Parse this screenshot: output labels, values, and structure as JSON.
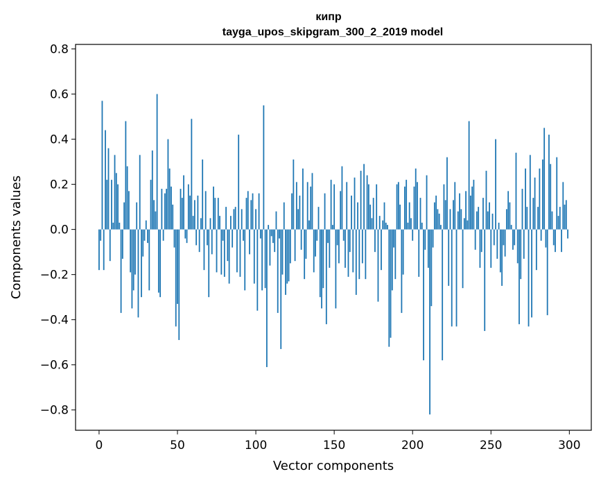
{
  "chart_data": {
    "type": "bar",
    "title": "кипр",
    "subtitle": "tayga_upos_skipgram_300_2_2019 model",
    "xlabel": "Vector components",
    "ylabel": "Components values",
    "xlim": [
      -15,
      314
    ],
    "ylim": [
      -0.89,
      0.82
    ],
    "xticks": [
      0,
      50,
      100,
      150,
      200,
      250,
      300
    ],
    "xtick_labels": [
      "0",
      "50",
      "100",
      "150",
      "200",
      "250",
      "300"
    ],
    "yticks": [
      -0.8,
      -0.6,
      -0.4,
      -0.2,
      0.0,
      0.2,
      0.4,
      0.6,
      0.8
    ],
    "ytick_labels": [
      "−0.8",
      "−0.6",
      "−0.4",
      "−0.2",
      "0.0",
      "0.2",
      "0.4",
      "0.6",
      "0.8"
    ],
    "grid": false,
    "x_start": 0,
    "values": [
      -0.18,
      -0.05,
      0.57,
      -0.18,
      0.44,
      0.22,
      0.36,
      -0.14,
      0.22,
      0.03,
      0.33,
      0.25,
      0.2,
      0.03,
      -0.37,
      -0.13,
      0.12,
      0.48,
      0.28,
      0.17,
      -0.19,
      -0.35,
      -0.27,
      -0.2,
      0.12,
      -0.39,
      0.33,
      -0.3,
      -0.12,
      -0.05,
      0.04,
      -0.06,
      -0.27,
      0.22,
      0.35,
      0.13,
      0.08,
      0.6,
      -0.28,
      -0.3,
      0.18,
      -0.05,
      0.16,
      0.18,
      0.4,
      0.27,
      0.19,
      0.11,
      -0.08,
      -0.43,
      -0.33,
      -0.49,
      0.18,
      0.14,
      0.24,
      -0.04,
      -0.06,
      0.2,
      0.15,
      0.49,
      0.06,
      0.13,
      -0.07,
      0.15,
      -0.1,
      0.05,
      0.31,
      -0.18,
      0.17,
      -0.07,
      -0.3,
      0.05,
      -0.11,
      0.19,
      0.14,
      -0.19,
      0.14,
      0.06,
      -0.2,
      -0.05,
      -0.21,
      0.1,
      -0.14,
      -0.24,
      0.06,
      -0.08,
      0.09,
      0.1,
      -0.19,
      0.42,
      -0.21,
      0.09,
      -0.05,
      -0.27,
      0.14,
      0.17,
      -0.11,
      0.13,
      0.16,
      -0.24,
      0.09,
      -0.36,
      0.16,
      -0.04,
      -0.27,
      0.55,
      -0.26,
      -0.61,
      0.02,
      -0.16,
      -0.03,
      -0.06,
      -0.1,
      0.08,
      -0.37,
      -0.04,
      -0.53,
      -0.2,
      0.12,
      -0.29,
      -0.24,
      -0.23,
      -0.15,
      0.16,
      0.31,
      -0.14,
      0.21,
      0.09,
      0.15,
      -0.09,
      0.27,
      -0.22,
      -0.13,
      0.21,
      0.04,
      0.19,
      0.25,
      -0.19,
      -0.12,
      -0.05,
      0.1,
      -0.3,
      -0.35,
      -0.26,
      0.16,
      -0.42,
      -0.06,
      -0.17,
      0.22,
      0.02,
      0.2,
      -0.35,
      -0.07,
      -0.15,
      0.17,
      0.28,
      -0.05,
      -0.17,
      0.21,
      -0.21,
      -0.1,
      0.15,
      -0.19,
      0.23,
      -0.29,
      0.12,
      -0.22,
      0.26,
      -0.15,
      0.29,
      -0.22,
      0.24,
      0.2,
      0.11,
      0.05,
      0.14,
      -0.1,
      0.2,
      -0.32,
      0.06,
      -0.18,
      0.04,
      0.12,
      0.03,
      0.02,
      -0.52,
      -0.48,
      -0.27,
      -0.08,
      -0.22,
      0.2,
      0.21,
      0.11,
      -0.37,
      -0.2,
      0.19,
      0.22,
      0.03,
      0.12,
      0.05,
      -0.05,
      0.19,
      0.27,
      0.21,
      -0.21,
      0.14,
      0.03,
      -0.58,
      -0.09,
      0.24,
      -0.17,
      -0.82,
      -0.34,
      -0.08,
      0.12,
      0.15,
      0.09,
      0.07,
      0.02,
      -0.58,
      0.2,
      0.13,
      0.32,
      -0.25,
      0.09,
      -0.43,
      0.13,
      0.21,
      -0.43,
      0.08,
      0.16,
      0.09,
      -0.26,
      0.05,
      0.17,
      0.04,
      0.48,
      0.15,
      0.19,
      0.22,
      -0.09,
      0.08,
      0.1,
      -0.17,
      -0.1,
      0.14,
      -0.45,
      0.26,
      0.08,
      0.12,
      -0.17,
      0.07,
      -0.07,
      0.4,
      -0.13,
      0.03,
      -0.19,
      -0.25,
      -0.07,
      -0.12,
      0.09,
      0.17,
      0.12,
      0.02,
      -0.09,
      -0.07,
      0.34,
      -0.15,
      -0.42,
      -0.22,
      0.18,
      -0.13,
      0.27,
      0.1,
      -0.43,
      0.33,
      -0.39,
      0.14,
      0.23,
      -0.18,
      0.1,
      0.27,
      -0.05,
      0.31,
      0.45,
      -0.08,
      -0.38,
      0.42,
      0.29,
      0.08,
      -0.07,
      -0.1,
      0.32,
      0.06,
      0.1,
      -0.1,
      0.21,
      0.11,
      0.13,
      -0.04
    ]
  }
}
